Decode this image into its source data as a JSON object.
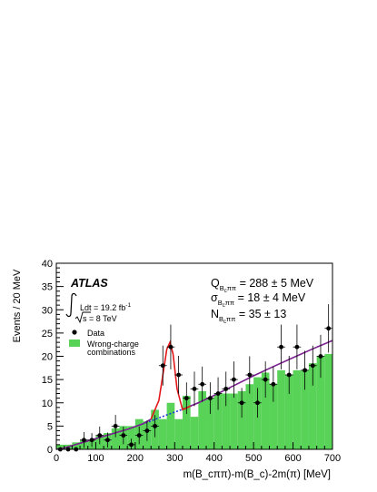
{
  "chart_data": {
    "type": "bar",
    "xlabel": "m(B_cππ)-m(B_c)-2m(π) [MeV]",
    "ylabel": "Events / 20 MeV",
    "xlim": [
      0,
      700
    ],
    "ylim": [
      0,
      40
    ],
    "x_ticks": [
      0,
      100,
      200,
      300,
      400,
      500,
      600,
      700
    ],
    "y_ticks": [
      0,
      5,
      10,
      15,
      20,
      25,
      30,
      35,
      40
    ],
    "experiment": "ATLAS",
    "lumi_label": "Ldt = 19.2 fb",
    "lumi_exp": "-1",
    "energy_label": "s = 8 TeV",
    "fit_results": [
      {
        "sym": "Q",
        "value": " = 288 ± 5 MeV"
      },
      {
        "sym": "σ",
        "value": " = 18 ± 4 MeV"
      },
      {
        "sym": "N",
        "value": " = 35 ± 13"
      }
    ],
    "fit_subscript": "B",
    "fit_subscript_tail": "ππ",
    "fit_subscript_c": "c",
    "legend": [
      {
        "label": "Data",
        "kind": "marker"
      },
      {
        "label": "Wrong-charge",
        "label2": "combinations",
        "kind": "box"
      }
    ],
    "colors": {
      "histogram": "#58d358",
      "signal_fit": "#e3171a",
      "background_fit": "#7a1f8e",
      "background_dashed": "#1a2fd8"
    },
    "series": [
      {
        "name": "Wrong-charge combinations",
        "kind": "histogram",
        "bin_width": 20,
        "bin_edges_start": 0,
        "values": [
          1.0,
          1.0,
          1.5,
          2.0,
          2.0,
          3.0,
          3.5,
          4.5,
          5.0,
          5.0,
          6.5,
          6.0,
          8.5,
          6.5,
          10.0,
          6.5,
          11.5,
          7.0,
          12.5,
          11.0,
          12.0,
          12.0,
          12.0,
          12.5,
          14.0,
          15.5,
          16.5,
          14.0,
          17.0,
          16.0,
          17.0,
          17.0,
          18.5,
          20.0,
          20.5
        ]
      },
      {
        "name": "Data",
        "kind": "points",
        "x": [
          10,
          30,
          50,
          70,
          90,
          110,
          130,
          150,
          170,
          190,
          210,
          230,
          250,
          270,
          290,
          310,
          330,
          350,
          370,
          390,
          410,
          430,
          450,
          470,
          490,
          510,
          530,
          550,
          570,
          590,
          610,
          630,
          650,
          670,
          690
        ],
        "y": [
          0,
          0,
          0,
          2,
          2,
          3,
          2,
          5,
          3,
          1,
          3,
          4,
          5,
          18,
          22,
          16,
          11,
          13,
          14,
          11,
          12,
          13,
          15,
          10,
          16,
          10,
          15,
          14,
          22,
          16,
          22,
          17,
          18,
          20,
          26
        ],
        "err": [
          0.5,
          0.5,
          0.5,
          1.7,
          1.5,
          1.9,
          1.6,
          2.4,
          1.9,
          1.3,
          1.9,
          2.2,
          2.4,
          4.3,
          4.8,
          4.1,
          3.4,
          3.7,
          3.8,
          3.4,
          3.5,
          3.7,
          3.9,
          3.2,
          4.0,
          3.2,
          3.9,
          3.8,
          4.8,
          4.1,
          4.8,
          4.2,
          4.3,
          4.6,
          5.2
        ]
      },
      {
        "name": "Signal + background fit",
        "kind": "curve",
        "x": [
          0,
          20,
          40,
          60,
          80,
          100,
          120,
          140,
          160,
          180,
          200,
          220,
          240,
          260,
          270,
          280,
          288,
          296,
          306,
          320,
          340,
          360,
          380,
          400,
          450,
          500,
          550,
          600,
          650,
          700
        ],
        "y": [
          0,
          0.3,
          0.8,
          1.3,
          1.8,
          2.3,
          2.8,
          3.3,
          3.8,
          4.3,
          4.9,
          5.5,
          6.5,
          10.5,
          16.0,
          21.5,
          23.0,
          20.5,
          13.0,
          8.5,
          9.3,
          10.0,
          10.8,
          11.6,
          13.7,
          15.8,
          17.8,
          19.7,
          21.6,
          23.4
        ]
      },
      {
        "name": "Background fit",
        "kind": "dashed",
        "x": [
          200,
          240,
          280,
          320,
          360
        ],
        "y": [
          4.9,
          6.1,
          7.4,
          8.6,
          10.0
        ]
      }
    ]
  }
}
